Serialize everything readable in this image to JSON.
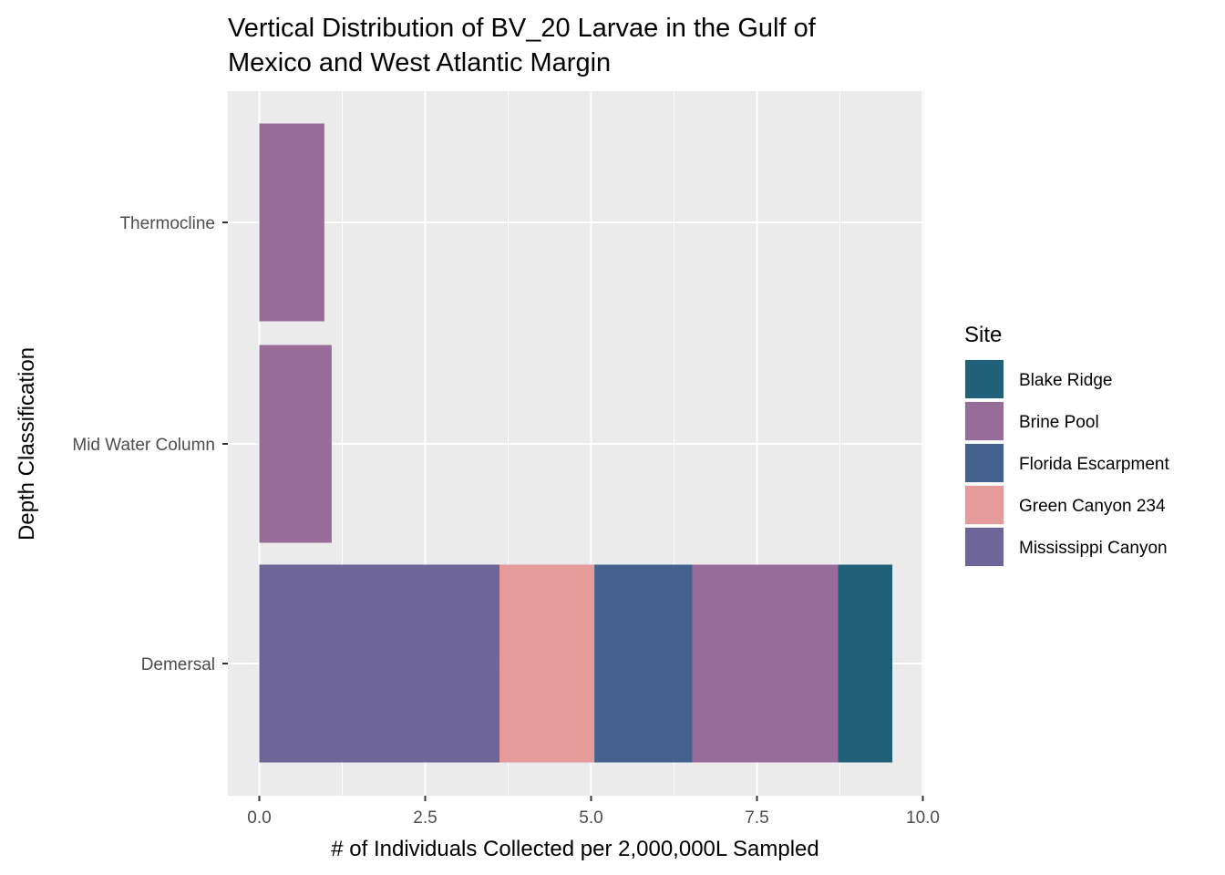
{
  "chart_data": {
    "type": "bar",
    "orientation": "horizontal",
    "stacked": true,
    "title": "Vertical Distribution of BV_20 Larvae in the Gulf of Mexico and West Atlantic Margin",
    "title_lines": [
      "Vertical Distribution of BV_20 Larvae in the Gulf of",
      "Mexico and West Atlantic Margin"
    ],
    "xlabel": "# of Individuals Collected per 2,000,000L Sampled",
    "ylabel": "Depth Classification",
    "xlim": [
      0,
      10
    ],
    "x_ticks": [
      0,
      2.5,
      5,
      7.5,
      10
    ],
    "x_tick_labels": [
      "0.0",
      "2.5",
      "5.0",
      "7.5",
      "10.0"
    ],
    "categories": [
      "Demersal",
      "Mid Water Column",
      "Thermocline"
    ],
    "grid": true,
    "legend": {
      "title": "Site",
      "position": "right",
      "entries": [
        "Blake Ridge",
        "Brine Pool",
        "Florida Escarpment",
        "Green Canyon 234",
        "Mississippi Canyon"
      ]
    },
    "stack_order": [
      "Mississippi Canyon",
      "Green Canyon 234",
      "Florida Escarpment",
      "Brine Pool",
      "Blake Ridge"
    ],
    "series": [
      {
        "name": "Blake Ridge",
        "color": "#206078",
        "values": [
          0.82,
          0,
          0
        ]
      },
      {
        "name": "Brine Pool",
        "color": "#976c98",
        "values": [
          2.19,
          1.09,
          0.98
        ]
      },
      {
        "name": "Florida Escarpment",
        "color": "#45618e",
        "values": [
          1.48,
          0,
          0
        ]
      },
      {
        "name": "Green Canyon 234",
        "color": "#e69b9b",
        "values": [
          1.43,
          0,
          0
        ]
      },
      {
        "name": "Mississippi Canyon",
        "color": "#6e6599",
        "values": [
          3.62,
          0,
          0
        ]
      }
    ]
  }
}
